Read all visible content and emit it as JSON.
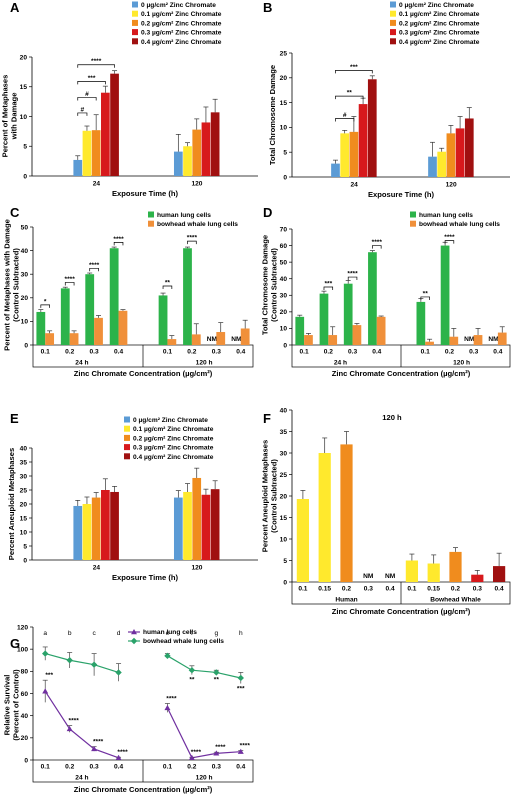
{
  "colors": {
    "c0": "#5b9bd5",
    "c1": "#ffe92d",
    "c2": "#f08c1e",
    "c3": "#d7191c",
    "c4": "#a01010",
    "human": "#2cb34a",
    "whale": "#f0903a",
    "humanLine": "#7030a0",
    "whaleLine": "#2aa26a"
  },
  "conc_legend": [
    "0 µg/cm² Zinc Chromate",
    "0.1 µg/cm² Zinc Chromate",
    "0.2 µg/cm² Zinc Chromate",
    "0.3 µg/cm² Zinc Chromate",
    "0.4 µg/cm² Zinc Chromate"
  ],
  "cells_legend": [
    "human lung cells",
    "bowhead whale lung cells"
  ],
  "chart_data": [
    {
      "id": "A",
      "type": "bar",
      "label": "A",
      "categories": [
        "24",
        "120"
      ],
      "series": [
        {
          "name": "0 µg/cm² Zinc Chromate",
          "values": [
            2.7,
            4.1
          ],
          "err": [
            0.7,
            2.9
          ]
        },
        {
          "name": "0.1 µg/cm² Zinc Chromate",
          "values": [
            7.6,
            5.0
          ],
          "err": [
            0.8,
            0.6
          ]
        },
        {
          "name": "0.2 µg/cm² Zinc Chromate",
          "values": [
            7.7,
            7.8
          ],
          "err": [
            2.6,
            1.8
          ]
        },
        {
          "name": "0.3 µg/cm² Zinc Chromate",
          "values": [
            14.0,
            9.0
          ],
          "err": [
            1.1,
            2.6
          ]
        },
        {
          "name": "0.4 µg/cm² Zinc Chromate",
          "values": [
            17.2,
            10.7
          ],
          "err": [
            0.5,
            2.2
          ]
        }
      ],
      "ylim": [
        0,
        20
      ],
      "yticks": [
        0,
        5,
        10,
        15,
        20
      ],
      "xlabel": "Exposure Time (h)",
      "ylabel": [
        "Percent of Metaphases",
        "with Damage"
      ],
      "sig": [
        "#",
        "#",
        "***",
        "****"
      ]
    },
    {
      "id": "B",
      "type": "bar",
      "label": "B",
      "categories": [
        "24",
        "120"
      ],
      "series": [
        {
          "name": "0 µg/cm² Zinc Chromate",
          "values": [
            2.7,
            4.1
          ],
          "err": [
            0.7,
            2.9
          ]
        },
        {
          "name": "0.1 µg/cm² Zinc Chromate",
          "values": [
            8.8,
            5.1
          ],
          "err": [
            0.6,
            0.7
          ]
        },
        {
          "name": "0.2 µg/cm² Zinc Chromate",
          "values": [
            9.1,
            8.8
          ],
          "err": [
            3.1,
            1.6
          ]
        },
        {
          "name": "0.3 µg/cm² Zinc Chromate",
          "values": [
            14.7,
            9.8
          ],
          "err": [
            1.2,
            2.4
          ]
        },
        {
          "name": "0.4 µg/cm² Zinc Chromate",
          "values": [
            19.7,
            11.8
          ],
          "err": [
            0.7,
            2.2
          ]
        }
      ],
      "ylim": [
        0,
        25
      ],
      "yticks": [
        0,
        5,
        10,
        15,
        20,
        25
      ],
      "xlabel": "Exposure Time (h)",
      "ylabel": [
        "Total Chromosome Damage"
      ],
      "sig": [
        "#",
        "**",
        "***"
      ]
    },
    {
      "id": "C",
      "type": "bar",
      "label": "C",
      "groups": [
        {
          "time": "24 h",
          "conc": [
            "0.1",
            "0.2",
            "0.3",
            "0.4"
          ]
        },
        {
          "time": "120 h",
          "conc": [
            "0.1",
            "0.2",
            "0.3",
            "0.4"
          ]
        }
      ],
      "series": [
        {
          "name": "human lung cells",
          "values": [
            14,
            24,
            30,
            41,
            21,
            41,
            null,
            null
          ],
          "err": [
            1,
            0.5,
            0.5,
            0.5,
            1,
            0.5,
            0,
            0
          ]
        },
        {
          "name": "bowhead whale lung cells",
          "values": [
            5,
            5,
            11.5,
            14.5,
            2.5,
            4.5,
            5.5,
            7
          ],
          "err": [
            1,
            1,
            1,
            0.5,
            1.5,
            4.5,
            4,
            3.5
          ]
        }
      ],
      "na_label": "NM",
      "ylim": [
        0,
        50
      ],
      "yticks": [
        0,
        10,
        20,
        30,
        40,
        50
      ],
      "xlabel": "Zinc Chromate Concentration (µg/cm²)",
      "ylabel": [
        "Percent of Metaphases with Damage",
        "(Control Subtracted)"
      ],
      "sig": [
        "*",
        "****",
        "****",
        "****",
        "**",
        "****"
      ]
    },
    {
      "id": "D",
      "type": "bar",
      "label": "D",
      "groups": [
        {
          "time": "24 h",
          "conc": [
            "0.1",
            "0.2",
            "0.3",
            "0.4"
          ]
        },
        {
          "time": "120 h",
          "conc": [
            "0.1",
            "0.2",
            "0.3",
            "0.4"
          ]
        }
      ],
      "series": [
        {
          "name": "human lung cells",
          "values": [
            17,
            31,
            37,
            56,
            26,
            60,
            null,
            null
          ],
          "err": [
            1,
            1.5,
            2,
            1,
            2,
            2,
            0,
            0
          ]
        },
        {
          "name": "bowhead whale lung cells",
          "values": [
            6,
            6,
            12,
            17,
            2,
            5,
            6,
            7.5
          ],
          "err": [
            1,
            5,
            1,
            0.5,
            1.5,
            5,
            4,
            3.5
          ]
        }
      ],
      "na_label": "NM",
      "ylim": [
        0,
        70
      ],
      "yticks": [
        0,
        10,
        20,
        30,
        40,
        50,
        60,
        70
      ],
      "xlabel": "Zinc Chromate Concentration (µg/cm²)",
      "ylabel": [
        "Total Chromosome Damage",
        "(Control Subtracted)"
      ],
      "sig": [
        "***",
        "****",
        "****",
        "**",
        "****"
      ]
    },
    {
      "id": "E",
      "type": "bar",
      "label": "E",
      "categories": [
        "24",
        "120"
      ],
      "series": [
        {
          "name": "0 µg/cm² Zinc Chromate",
          "values": [
            19.3,
            22.3
          ],
          "err": [
            2,
            2.5
          ]
        },
        {
          "name": "0.1 µg/cm² Zinc Chromate",
          "values": [
            20.0,
            24.3
          ],
          "err": [
            2.5,
            3
          ]
        },
        {
          "name": "0.2 µg/cm² Zinc Chromate",
          "values": [
            22.3,
            29.3
          ],
          "err": [
            1.8,
            3.5
          ]
        },
        {
          "name": "0.3 µg/cm² Zinc Chromate",
          "values": [
            25.0,
            23.3
          ],
          "err": [
            4,
            2
          ]
        },
        {
          "name": "0.4 µg/cm² Zinc Chromate",
          "values": [
            24.3,
            25.3
          ],
          "err": [
            2,
            3
          ]
        }
      ],
      "ylim": [
        0,
        40
      ],
      "yticks": [
        0,
        5,
        10,
        15,
        20,
        25,
        30,
        35,
        40
      ],
      "xlabel": "Exposure Time (h)",
      "ylabel": [
        "Percent Aneuploid Metaphases"
      ]
    },
    {
      "id": "F",
      "type": "bar",
      "label": "F",
      "title": "120 h",
      "groups": [
        {
          "name": "Human",
          "conc": [
            "0.1",
            "0.15",
            "0.2",
            "0.3",
            "0.4"
          ]
        },
        {
          "name": "Bowhead Whale",
          "conc": [
            "0.1",
            "0.15",
            "0.2",
            "0.3",
            "0.4"
          ]
        }
      ],
      "values": [
        19.3,
        30,
        32,
        null,
        null,
        5,
        4.3,
        7,
        1.7,
        3.7
      ],
      "err": [
        2,
        3.5,
        3,
        0,
        0,
        1.5,
        2,
        1,
        1,
        3
      ],
      "bar_colors": [
        "c1",
        "c1",
        "c2",
        "c3",
        "c4",
        "c1",
        "c1",
        "c2",
        "c3",
        "c4"
      ],
      "na_label": "NM",
      "ylim": [
        0,
        40
      ],
      "yticks": [
        0,
        5,
        10,
        15,
        20,
        25,
        30,
        35,
        40
      ],
      "xlabel": "Zinc Chromate Concentration (µg/cm²)",
      "ylabel": [
        "Percent Aneuploid Metaphases",
        "(Control Subtracted)"
      ]
    },
    {
      "id": "G",
      "type": "line",
      "label": "G",
      "groups": [
        {
          "time": "24 h",
          "conc": [
            "0.1",
            "0.2",
            "0.3",
            "0.4"
          ]
        },
        {
          "time": "120 h",
          "conc": [
            "0.1",
            "0.2",
            "0.3",
            "0.4"
          ]
        }
      ],
      "series": [
        {
          "name": "human lung cells",
          "values": [
            62,
            28,
            10,
            2,
            47,
            2,
            6,
            7.5
          ],
          "err": [
            10,
            3,
            2,
            0.5,
            4,
            0.5,
            1,
            1
          ],
          "sig": [
            "***",
            "****",
            "****",
            "****",
            "****",
            "****",
            "****",
            "****"
          ]
        },
        {
          "name": "bowhead whale lung cells",
          "values": [
            96,
            90,
            86,
            79,
            94,
            81,
            79,
            74
          ],
          "err": [
            6,
            7,
            10,
            8,
            2,
            4,
            2,
            5
          ],
          "sig": [
            "",
            "",
            "",
            "",
            "",
            "**",
            "**",
            "***"
          ]
        }
      ],
      "letters": [
        "a",
        "b",
        "c",
        "d",
        "e",
        "f",
        "g",
        "h"
      ],
      "ylim": [
        0,
        120
      ],
      "yticks": [
        0,
        20,
        40,
        60,
        80,
        100,
        120
      ],
      "xlabel": "Zinc Chromate Concentration (µg/cm²)",
      "ylabel": [
        "Relative Survival",
        "(Percent of Control)"
      ]
    }
  ]
}
